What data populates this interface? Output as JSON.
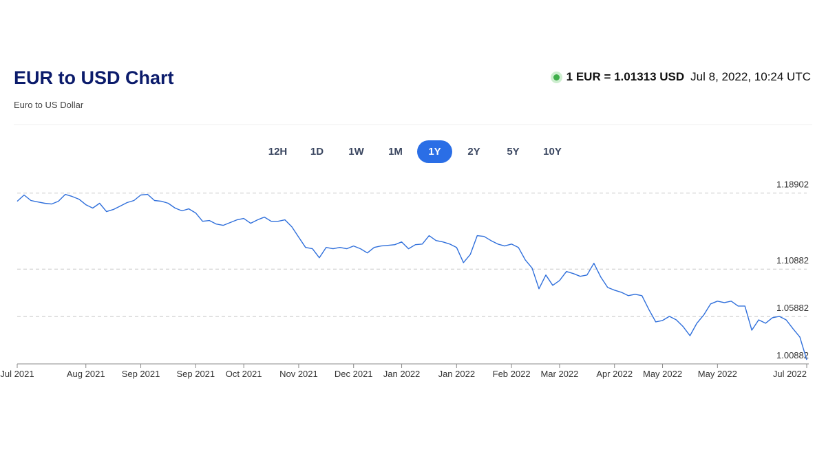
{
  "header": {
    "title": "EUR to USD Chart",
    "subtitle": "Euro to US Dollar",
    "rate": "1 EUR = 1.01313 USD",
    "timestamp": "Jul 8, 2022, 10:24 UTC"
  },
  "ranges": {
    "options": [
      "12H",
      "1D",
      "1W",
      "1M",
      "1Y",
      "2Y",
      "5Y",
      "10Y"
    ],
    "active": 4
  },
  "chart_data": {
    "type": "line",
    "color": "#2f6fdb",
    "grid": true,
    "y_axis_side": "right",
    "categories": [
      "Jul 2021",
      null,
      null,
      null,
      null,
      null,
      null,
      null,
      null,
      null,
      "Aug 2021",
      null,
      null,
      null,
      null,
      null,
      null,
      null,
      "Sep 2021",
      null,
      null,
      null,
      null,
      null,
      null,
      null,
      "Sep 2021",
      null,
      null,
      null,
      null,
      null,
      null,
      "Oct 2021",
      null,
      null,
      null,
      null,
      null,
      null,
      null,
      "Nov 2021",
      null,
      null,
      null,
      null,
      null,
      null,
      null,
      "Dec 2021",
      null,
      null,
      null,
      null,
      null,
      null,
      "Jan 2022",
      null,
      null,
      null,
      null,
      null,
      null,
      null,
      "Jan 2022",
      null,
      null,
      null,
      null,
      null,
      null,
      null,
      "Feb 2022",
      null,
      null,
      null,
      null,
      null,
      null,
      "Mar 2022",
      null,
      null,
      null,
      null,
      null,
      null,
      null,
      "Apr 2022",
      null,
      null,
      null,
      null,
      null,
      null,
      "May 2022",
      null,
      null,
      null,
      null,
      null,
      null,
      null,
      "May 2022",
      null,
      null,
      null,
      null,
      null,
      null,
      null,
      null,
      null,
      null,
      null,
      null,
      "Jul 2022"
    ],
    "values": [
      1.1804,
      1.187,
      1.1812,
      1.1797,
      1.1783,
      1.1775,
      1.1804,
      1.1877,
      1.1855,
      1.1826,
      1.1768,
      1.1732,
      1.1783,
      1.1695,
      1.1717,
      1.1753,
      1.179,
      1.1812,
      1.187,
      1.1877,
      1.1812,
      1.1804,
      1.1783,
      1.1732,
      1.1703,
      1.1724,
      1.1681,
      1.1593,
      1.1601,
      1.1564,
      1.155,
      1.1579,
      1.1608,
      1.1623,
      1.1572,
      1.1608,
      1.1637,
      1.1593,
      1.1593,
      1.1608,
      1.1535,
      1.1426,
      1.1317,
      1.1303,
      1.1208,
      1.1317,
      1.1303,
      1.1317,
      1.1303,
      1.1332,
      1.1303,
      1.1259,
      1.1317,
      1.1332,
      1.1339,
      1.1346,
      1.1375,
      1.1303,
      1.1346,
      1.1353,
      1.1441,
      1.139,
      1.1375,
      1.1353,
      1.1317,
      1.1157,
      1.1244,
      1.1441,
      1.1433,
      1.139,
      1.1353,
      1.1332,
      1.1353,
      1.1317,
      1.1186,
      1.1099,
      1.0881,
      1.1026,
      1.0917,
      1.0968,
      1.1063,
      1.1041,
      1.1012,
      1.1026,
      1.115,
      1.1004,
      1.0895,
      1.0866,
      1.0844,
      1.0808,
      1.0823,
      1.0808,
      1.0663,
      1.0532,
      1.0546,
      1.059,
      1.0553,
      1.0481,
      1.0386,
      1.0517,
      1.0604,
      1.0721,
      1.075,
      1.0735,
      1.075,
      1.0699,
      1.0699,
      1.0444,
      1.0553,
      1.0517,
      1.0575,
      1.059,
      1.0553,
      1.0459,
      1.0372,
      1.0131
    ],
    "ylim": [
      1.00882,
      1.19682
    ],
    "yticks": [
      1.00882,
      1.05882,
      1.10882,
      1.18902
    ]
  }
}
